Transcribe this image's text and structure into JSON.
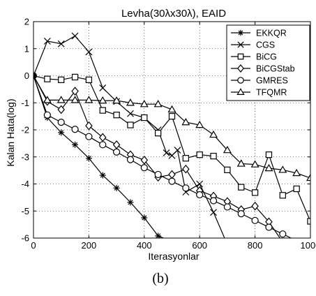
{
  "chart_data": {
    "type": "line",
    "title": "Levha(30λx30λ), EAID",
    "xlabel": "Iterasyonlar",
    "ylabel": "Kalan Hata(log)",
    "xlim": [
      0,
      1000
    ],
    "ylim": [
      -6,
      2
    ],
    "xticks": [
      0,
      200,
      400,
      600,
      800,
      1000
    ],
    "yticks": [
      -6,
      -5,
      -4,
      -3,
      -2,
      -1,
      0,
      1,
      2
    ],
    "grid": true,
    "legend_position": "top-right",
    "caption": "(b)",
    "series": [
      {
        "name": "EKKQR",
        "marker": "asterisk",
        "x": [
          0,
          50,
          100,
          150,
          200,
          250,
          300,
          350,
          400,
          450,
          470
        ],
        "y": [
          0,
          -1.55,
          -2.1,
          -2.55,
          -3.05,
          -3.68,
          -4.15,
          -4.68,
          -5.25,
          -5.92,
          -6.0
        ]
      },
      {
        "name": "CGS",
        "marker": "x",
        "x": [
          0,
          50,
          100,
          150,
          200,
          250,
          300,
          350,
          400,
          450,
          480,
          500,
          520,
          550,
          600,
          650,
          690
        ],
        "y": [
          0,
          1.28,
          1.18,
          1.47,
          0.88,
          -0.45,
          -0.95,
          -1.4,
          -1.55,
          -2.0,
          -2.85,
          -2.95,
          -2.75,
          -4.3,
          -4.0,
          -5.05,
          -6.0
        ]
      },
      {
        "name": "BiCG",
        "marker": "square",
        "x": [
          0,
          50,
          100,
          150,
          200,
          250,
          300,
          350,
          400,
          450,
          500,
          550,
          600,
          650,
          700,
          750,
          800,
          850,
          900,
          950,
          1000
        ],
        "y": [
          0,
          -0.12,
          -0.15,
          -0.05,
          -0.15,
          -1.28,
          -1.45,
          -1.82,
          -1.55,
          -2.12,
          -1.5,
          -3.05,
          -2.92,
          -2.97,
          -3.48,
          -4.12,
          -4.32,
          -2.92,
          -4.42,
          -4.18,
          -5.38
        ]
      },
      {
        "name": "BiCGStab",
        "marker": "diamond",
        "x": [
          0,
          50,
          100,
          150,
          200,
          250,
          300,
          350,
          400,
          450,
          500,
          550,
          600,
          650,
          700,
          750,
          800,
          850,
          890
        ],
        "y": [
          0,
          -0.95,
          -1.25,
          -0.57,
          -1.85,
          -2.28,
          -2.55,
          -2.92,
          -3.12,
          -3.75,
          -3.65,
          -3.45,
          -4.25,
          -4.45,
          -4.65,
          -4.95,
          -4.82,
          -5.4,
          -6.0
        ]
      },
      {
        "name": "GMRES",
        "marker": "circle",
        "x": [
          0,
          50,
          100,
          150,
          200,
          250,
          300,
          350,
          400,
          450,
          500,
          550,
          600,
          650,
          700,
          750,
          800,
          850,
          900,
          930
        ],
        "y": [
          0,
          -1.45,
          -1.72,
          -1.98,
          -2.25,
          -2.55,
          -2.82,
          -3.1,
          -3.4,
          -3.65,
          -3.9,
          -4.15,
          -4.4,
          -4.62,
          -4.85,
          -5.1,
          -5.35,
          -5.6,
          -5.85,
          -6.0
        ]
      },
      {
        "name": "TFQMR",
        "marker": "triangle",
        "x": [
          0,
          50,
          100,
          150,
          200,
          250,
          300,
          350,
          400,
          450,
          500,
          550,
          600,
          650,
          700,
          750,
          800,
          850,
          900,
          950,
          1000
        ],
        "y": [
          0,
          -0.9,
          -0.9,
          -0.9,
          -0.9,
          -0.92,
          -0.92,
          -1.0,
          -1.05,
          -1.05,
          -1.25,
          -1.72,
          -1.82,
          -2.18,
          -2.75,
          -3.25,
          -3.28,
          -3.42,
          -3.48,
          -3.6,
          -3.78
        ]
      }
    ]
  }
}
